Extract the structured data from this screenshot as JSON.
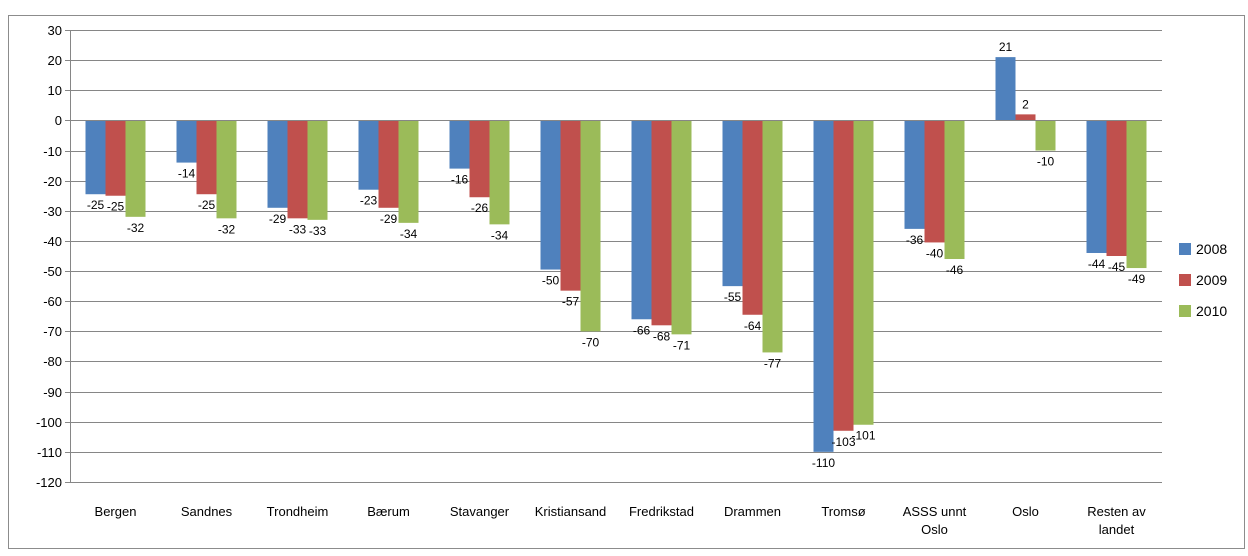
{
  "chart_data": {
    "type": "bar",
    "title": "",
    "xlabel": "",
    "ylabel": "",
    "ylim": [
      -120,
      30
    ],
    "yticks": [
      30,
      20,
      10,
      0,
      -10,
      -20,
      -30,
      -40,
      -50,
      -60,
      -70,
      -80,
      -90,
      -100,
      -110,
      -120
    ],
    "grid": true,
    "legend_position": "right",
    "categories": [
      "Bergen",
      "Sandnes",
      "Trondheim",
      "Bærum",
      "Stavanger",
      "Kristiansand",
      "Fredrikstad",
      "Drammen",
      "Tromsø",
      "ASSS unnt Oslo",
      "Oslo",
      "Resten av landet"
    ],
    "series": [
      {
        "name": "2008",
        "color": "#4f81bd",
        "values": [
          -24.5,
          -14,
          -29,
          -23,
          -16,
          -49.5,
          -66,
          -55,
          -110,
          -36,
          21,
          -44
        ]
      },
      {
        "name": "2009",
        "color": "#c0504d",
        "values": [
          -25,
          -24.5,
          -32.5,
          -29,
          -25.5,
          -56.5,
          -68,
          -64.5,
          -103,
          -40.5,
          2,
          -45
        ]
      },
      {
        "name": "2010",
        "color": "#9bbb59",
        "values": [
          -32,
          -32.5,
          -33,
          -34,
          -34.5,
          -70,
          -71,
          -77,
          -101,
          -46,
          -10,
          -49
        ]
      }
    ],
    "data_labels": [
      [
        "-25",
        "-14",
        "-29",
        "-23",
        "-16",
        "-50",
        "-66",
        "-55",
        "-110",
        "-36",
        "21",
        "-44"
      ],
      [
        "-25",
        "-25",
        "-33",
        "-29",
        "-26",
        "-57",
        "-68",
        "-64",
        "-103",
        "-40",
        "2",
        "-45"
      ],
      [
        "-32",
        "-32",
        "-33",
        "-34",
        "-34",
        "-70",
        "-71",
        "-77",
        "-101",
        "-46",
        "-10",
        "-49"
      ]
    ],
    "category_label_lines": [
      [
        "Bergen"
      ],
      [
        "Sandnes"
      ],
      [
        "Trondheim"
      ],
      [
        "Bærum"
      ],
      [
        "Stavanger"
      ],
      [
        "Kristiansand"
      ],
      [
        "Fredrikstad"
      ],
      [
        "Drammen"
      ],
      [
        "Tromsø"
      ],
      [
        "ASSS unnt",
        "Oslo"
      ],
      [
        "Oslo"
      ],
      [
        "Resten av",
        "landet"
      ]
    ]
  }
}
